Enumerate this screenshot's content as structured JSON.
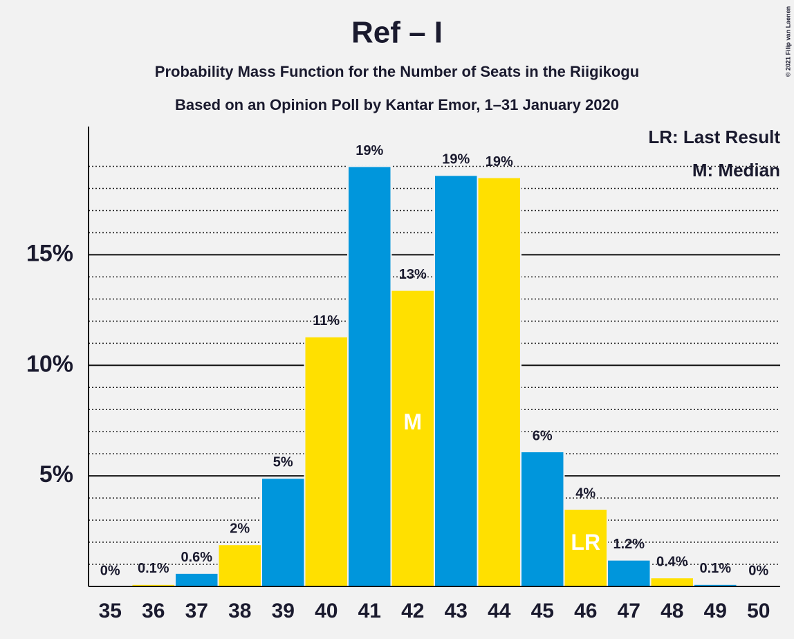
{
  "chart_data": {
    "type": "bar",
    "title": "Ref – I",
    "subtitle": "Probability Mass Function for the Number of Seats in the Riigikogu",
    "subtitle2": "Based on an Opinion Poll by Kantar Emor, 1–31 January 2020",
    "copyright": "© 2021 Filip van Laenen",
    "categories": [
      "35",
      "36",
      "37",
      "38",
      "39",
      "40",
      "41",
      "42",
      "43",
      "44",
      "45",
      "46",
      "47",
      "48",
      "49",
      "50"
    ],
    "values": [
      0,
      0.1,
      0.6,
      1.9,
      4.9,
      11.3,
      19.0,
      13.4,
      18.6,
      18.5,
      6.1,
      3.5,
      1.2,
      0.4,
      0.1,
      0
    ],
    "value_labels": [
      "0%",
      "0.1%",
      "0.6%",
      "2%",
      "5%",
      "11%",
      "19%",
      "13%",
      "19%",
      "19%",
      "6%",
      "4%",
      "1.2%",
      "0.4%",
      "0.1%",
      "0%"
    ],
    "colors": [
      "#0096dc",
      "#ffe000",
      "#0096dc",
      "#ffe000",
      "#0096dc",
      "#ffe000",
      "#0096dc",
      "#ffe000",
      "#0096dc",
      "#ffe000",
      "#0096dc",
      "#ffe000",
      "#0096dc",
      "#ffe000",
      "#0096dc",
      "#ffe000"
    ],
    "ylim": [
      0,
      20.8
    ],
    "yticks": [
      {
        "value": 5,
        "label": "5%"
      },
      {
        "value": 10,
        "label": "10%"
      },
      {
        "value": 15,
        "label": "15%"
      }
    ],
    "minor_yticks": [
      1,
      2,
      3,
      4,
      6,
      7,
      8,
      9,
      11,
      12,
      13,
      14,
      16,
      17,
      18,
      19
    ],
    "markers": [
      {
        "category": "42",
        "label": "M"
      },
      {
        "category": "46",
        "label": "LR"
      }
    ],
    "legend_notes": [
      "LR: Last Result",
      "M: Median"
    ]
  }
}
